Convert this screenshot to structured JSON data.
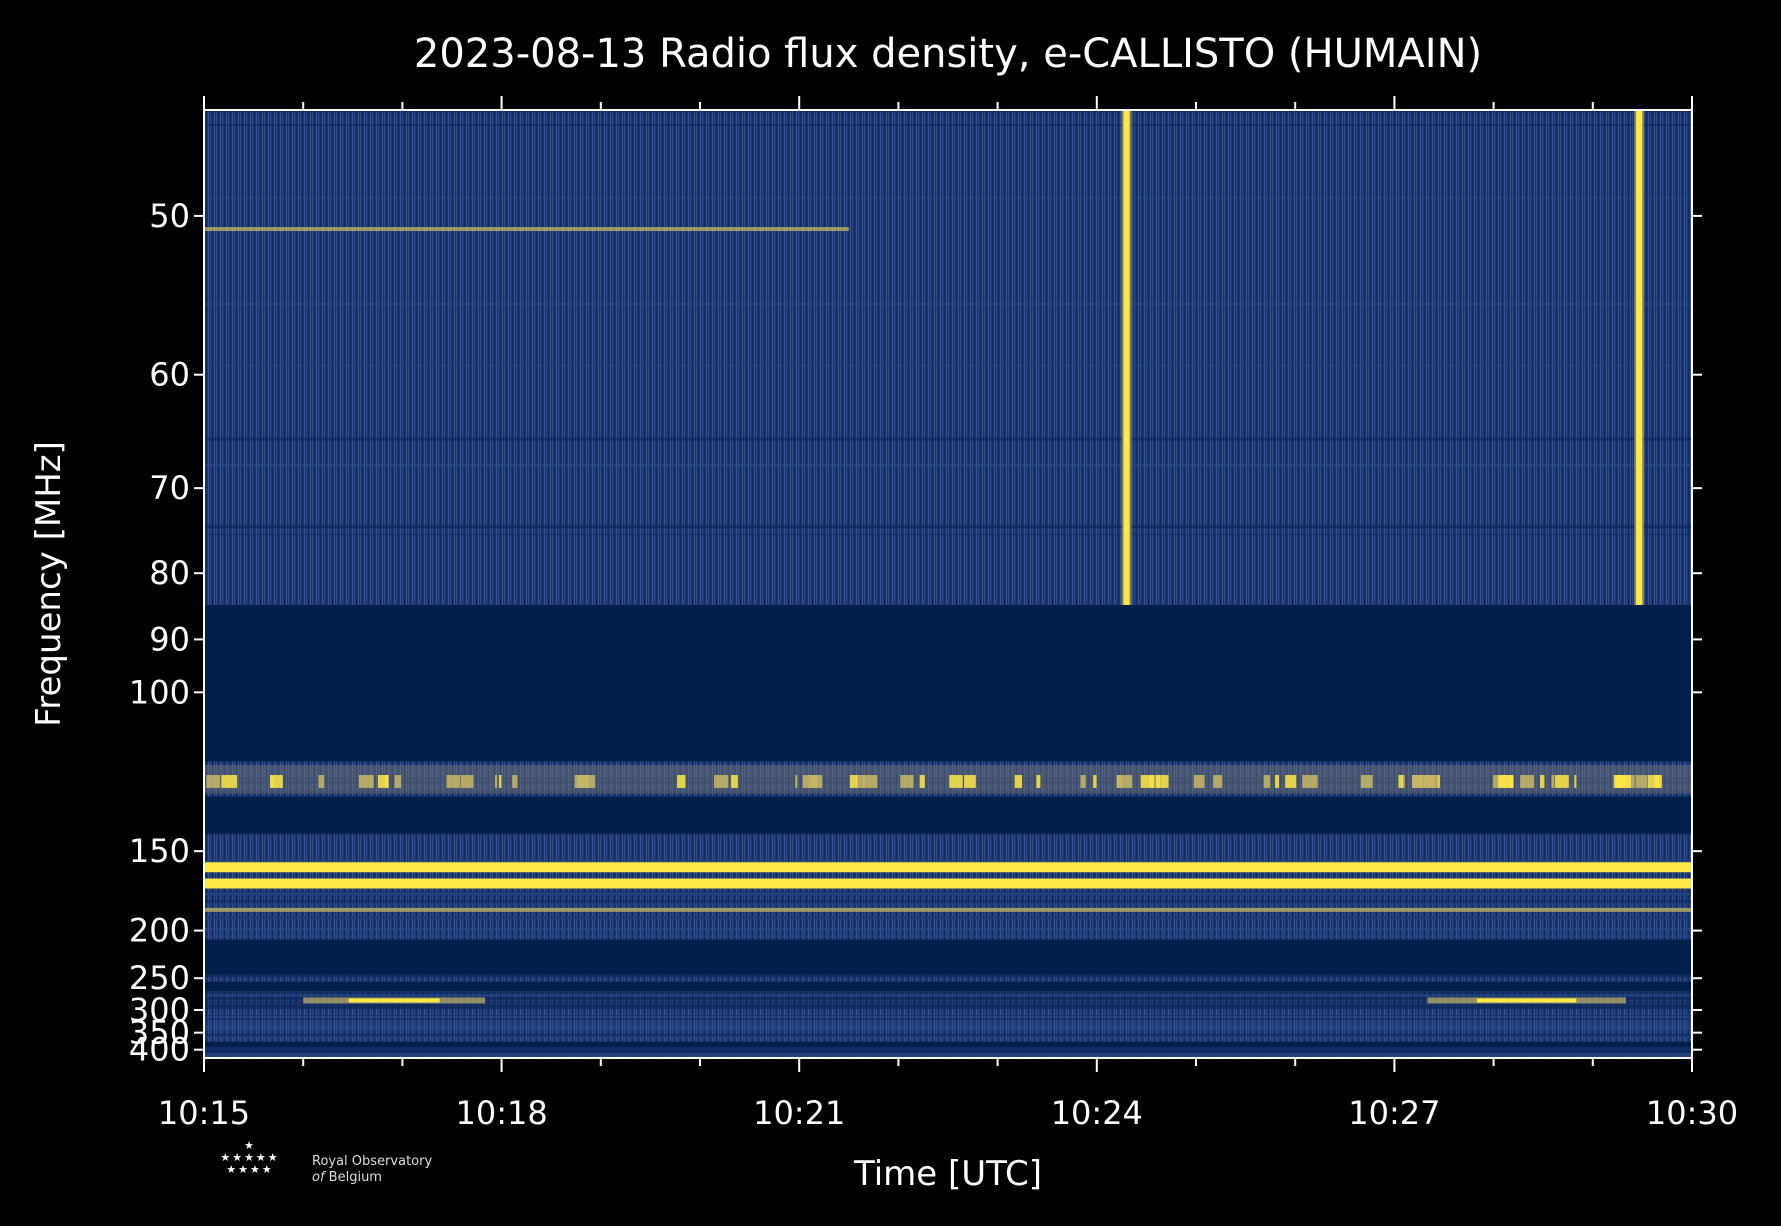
{
  "chart_data": {
    "type": "heatmap",
    "title": "2023-08-13 Radio flux density, e-CALLISTO (HUMAIN)",
    "xlabel": "Time [UTC]",
    "ylabel": "Frequency [MHz]",
    "x_range": [
      "10:15",
      "10:30"
    ],
    "y_range_mhz": [
      45,
      430
    ],
    "y_scale": "reciprocal",
    "x_ticks": [
      "10:15",
      "10:18",
      "10:21",
      "10:24",
      "10:27",
      "10:30"
    ],
    "y_ticks": [
      50,
      60,
      70,
      80,
      90,
      100,
      150,
      200,
      250,
      300,
      350,
      400
    ],
    "colormap": [
      "#00204c",
      "#1f3d7a",
      "#7c7b78",
      "#c8b866",
      "#ffe945"
    ],
    "background_color": "#00204c",
    "gap_bands_mhz": [
      [
        84.5,
        117
      ],
      [
        128,
        142
      ],
      [
        208,
        245
      ],
      [
        255,
        268
      ],
      [
        375,
        390
      ]
    ],
    "bright_features": [
      {
        "type": "vertical_burst",
        "time": "10:24:18",
        "freq_range_mhz": [
          45,
          84.5
        ]
      },
      {
        "type": "vertical_burst",
        "time": "10:29:28",
        "freq_range_mhz": [
          45,
          84.5
        ]
      },
      {
        "type": "horizontal_line",
        "freq_mhz": 158,
        "intensity": "high"
      },
      {
        "type": "horizontal_line",
        "freq_mhz": 167,
        "intensity": "high"
      },
      {
        "type": "horizontal_line",
        "freq_mhz": 184,
        "intensity": "medium"
      },
      {
        "type": "horizontal_line",
        "freq_mhz": 50.7,
        "intensity": "medium",
        "time_range": [
          "10:15",
          "10:21:30"
        ]
      },
      {
        "type": "horizontal_segment",
        "freq_mhz": 283,
        "time_range": [
          "10:16",
          "10:17:50"
        ]
      },
      {
        "type": "horizontal_segment",
        "freq_mhz": 283,
        "time_range": [
          "10:27:20",
          "10:29:20"
        ]
      },
      {
        "type": "interference_band",
        "freq_range_mhz": [
          118,
          127
        ]
      }
    ]
  },
  "logo": {
    "stars_top": "★",
    "stars_mid": "★★★★★",
    "stars_bot": "★★★★",
    "line1": "Royal Observatory",
    "line2_prefix": "of",
    "line2": "Belgium"
  }
}
